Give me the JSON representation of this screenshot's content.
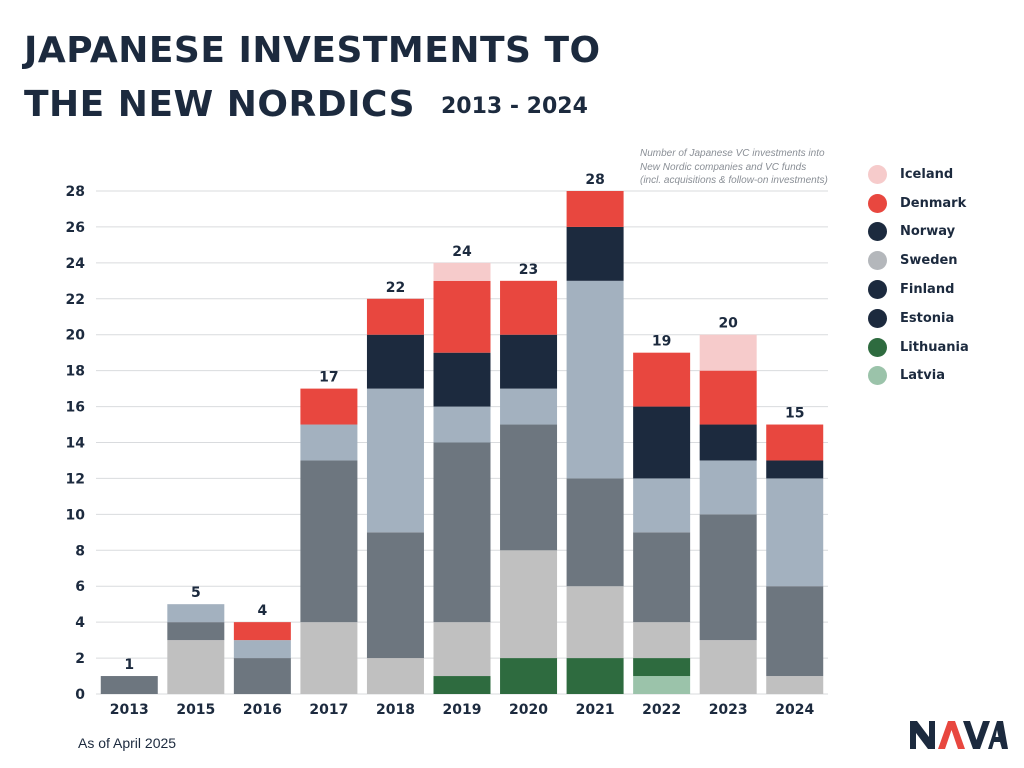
{
  "title_line1": "JAPANESE INVESTMENTS TO",
  "title_line2": "THE NEW NORDICS",
  "subtitle": "2013 - 2024",
  "note": {
    "line1": "Number of Japanese VC investments into",
    "line2": "New Nordic companies and VC funds",
    "line3": "(incl. acquisitions & follow-on investments)"
  },
  "footnote": "As of April 2025",
  "logo": {
    "text": "NAVA",
    "colors": {
      "dark": "#1c2a3e",
      "accent": "#e8473f"
    }
  },
  "legend": [
    {
      "label": "Iceland",
      "color": "#f6cbcb"
    },
    {
      "label": "Denmark",
      "color": "#e8473f"
    },
    {
      "label": "Norway",
      "color": "#1c2a3e"
    },
    {
      "label": "Sweden",
      "color": "#b4b7bb"
    },
    {
      "label": "Finland",
      "color": "#1c2a3e"
    },
    {
      "label": "Estonia",
      "color": "#1c2a3e"
    },
    {
      "label": "Lithuania",
      "color": "#2e6b3f"
    },
    {
      "label": "Latvia",
      "color": "#9bc3aa"
    }
  ],
  "chart_data": {
    "type": "bar",
    "stacked": true,
    "categories": [
      "2013",
      "2015",
      "2016",
      "2017",
      "2018",
      "2019",
      "2020",
      "2021",
      "2022",
      "2023",
      "2024"
    ],
    "totals": [
      1,
      5,
      4,
      17,
      22,
      24,
      23,
      28,
      19,
      20,
      15
    ],
    "ylim": [
      0,
      28
    ],
    "yticks": [
      0,
      2,
      4,
      6,
      8,
      10,
      12,
      14,
      16,
      18,
      20,
      22,
      24,
      26,
      28
    ],
    "grid": true,
    "segment_colors": {
      "latvia": "#9bc3aa",
      "lithuania": "#2e6b3f",
      "light_gray": "#c0c0c0",
      "dark_gray": "#6d767f",
      "blue_gray": "#a3b1bf",
      "navy": "#1c2a3e",
      "denmark": "#e8473f",
      "iceland": "#f6cbcb"
    },
    "segment_order": [
      "latvia",
      "lithuania",
      "light_gray",
      "dark_gray",
      "blue_gray",
      "navy",
      "denmark",
      "iceland"
    ],
    "segments": [
      {
        "latvia": 0,
        "lithuania": 0,
        "light_gray": 0,
        "dark_gray": 1,
        "blue_gray": 0,
        "navy": 0,
        "denmark": 0,
        "iceland": 0
      },
      {
        "latvia": 0,
        "lithuania": 0,
        "light_gray": 3,
        "dark_gray": 1,
        "blue_gray": 1,
        "navy": 0,
        "denmark": 0,
        "iceland": 0
      },
      {
        "latvia": 0,
        "lithuania": 0,
        "light_gray": 0,
        "dark_gray": 2,
        "blue_gray": 1,
        "navy": 0,
        "denmark": 1,
        "iceland": 0
      },
      {
        "latvia": 0,
        "lithuania": 0,
        "light_gray": 4,
        "dark_gray": 9,
        "blue_gray": 2,
        "navy": 0,
        "denmark": 2,
        "iceland": 0
      },
      {
        "latvia": 0,
        "lithuania": 0,
        "light_gray": 2,
        "dark_gray": 7,
        "blue_gray": 8,
        "navy": 3,
        "denmark": 2,
        "iceland": 0
      },
      {
        "latvia": 0,
        "lithuania": 1,
        "light_gray": 3,
        "dark_gray": 10,
        "blue_gray": 2,
        "navy": 3,
        "denmark": 4,
        "iceland": 1
      },
      {
        "latvia": 0,
        "lithuania": 2,
        "light_gray": 6,
        "dark_gray": 7,
        "blue_gray": 2,
        "navy": 3,
        "denmark": 3,
        "iceland": 0
      },
      {
        "latvia": 0,
        "lithuania": 2,
        "light_gray": 4,
        "dark_gray": 6,
        "blue_gray": 11,
        "navy": 3,
        "denmark": 2,
        "iceland": 0
      },
      {
        "latvia": 1,
        "lithuania": 1,
        "light_gray": 2,
        "dark_gray": 5,
        "blue_gray": 3,
        "navy": 4,
        "denmark": 3,
        "iceland": 0
      },
      {
        "latvia": 0,
        "lithuania": 0,
        "light_gray": 3,
        "dark_gray": 7,
        "blue_gray": 3,
        "navy": 2,
        "denmark": 3,
        "iceland": 2
      },
      {
        "latvia": 0,
        "lithuania": 0,
        "light_gray": 1,
        "dark_gray": 5,
        "blue_gray": 6,
        "navy": 1,
        "denmark": 2,
        "iceland": 0
      }
    ]
  }
}
